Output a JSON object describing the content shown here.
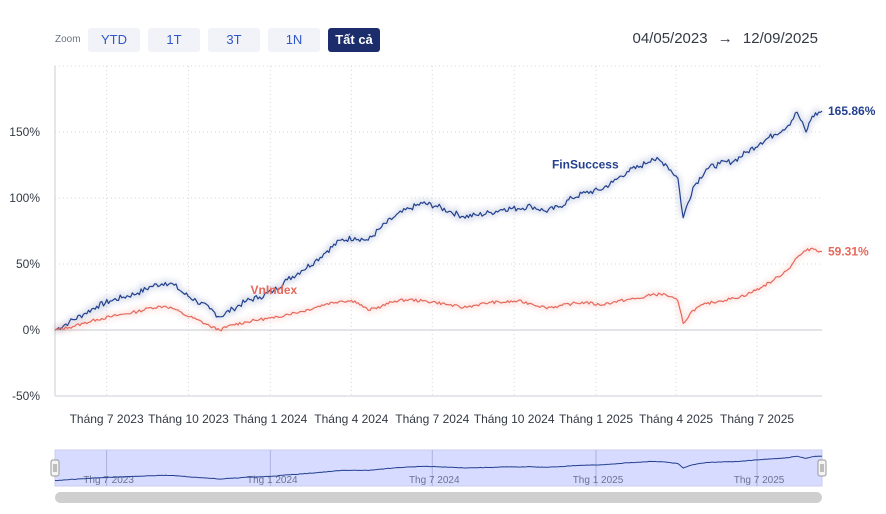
{
  "toolbar": {
    "zoom_label": "Zoom",
    "buttons": [
      "YTD",
      "1T",
      "3T",
      "1N",
      "Tất cả"
    ],
    "active_index": 4
  },
  "date_range": {
    "from": "04/05/2023",
    "arrow": "→",
    "to": "12/09/2025"
  },
  "colors": {
    "finsuccess": "#23408e",
    "vnindex": "#e5685a",
    "active_button": "#1b2d6b",
    "navigator_fill": "#c9d0ff"
  },
  "chart_data": {
    "type": "line",
    "title": "",
    "xlabel": "",
    "ylabel": "",
    "y_tick_labels": [
      "-50%",
      "0%",
      "50%",
      "100%",
      "150%"
    ],
    "y_ticks": [
      -50,
      0,
      50,
      100,
      150
    ],
    "ylim": [
      -50,
      200
    ],
    "x_range": [
      "2023-05-04",
      "2025-09-12"
    ],
    "x_tick_labels": [
      "Tháng 7 2023",
      "Tháng 10 2023",
      "Tháng 1 2024",
      "Tháng 4 2024",
      "Tháng 7 2024",
      "Tháng 10 2024",
      "Tháng 1 2025",
      "Tháng 4 2025",
      "Tháng 7 2025"
    ],
    "x_ticks": [
      "2023-07-01",
      "2023-10-01",
      "2024-01-01",
      "2024-04-01",
      "2024-07-01",
      "2024-10-01",
      "2025-01-01",
      "2025-04-01",
      "2025-07-01"
    ],
    "grid": true,
    "series": [
      {
        "name": "FinSuccess",
        "end_label": "165.86%",
        "points": [
          [
            "2023-05-04",
            0
          ],
          [
            "2023-05-20",
            6
          ],
          [
            "2023-06-05",
            12
          ],
          [
            "2023-06-20",
            18
          ],
          [
            "2023-07-05",
            22
          ],
          [
            "2023-07-20",
            25
          ],
          [
            "2023-08-05",
            28
          ],
          [
            "2023-08-20",
            33
          ],
          [
            "2023-09-05",
            36
          ],
          [
            "2023-09-15",
            34
          ],
          [
            "2023-09-25",
            28
          ],
          [
            "2023-10-10",
            22
          ],
          [
            "2023-10-25",
            16
          ],
          [
            "2023-11-05",
            10
          ],
          [
            "2023-11-20",
            16
          ],
          [
            "2023-12-05",
            22
          ],
          [
            "2023-12-20",
            25
          ],
          [
            "2024-01-05",
            30
          ],
          [
            "2024-01-20",
            38
          ],
          [
            "2024-02-05",
            45
          ],
          [
            "2024-02-20",
            52
          ],
          [
            "2024-03-05",
            60
          ],
          [
            "2024-03-20",
            68
          ],
          [
            "2024-04-05",
            70
          ],
          [
            "2024-04-20",
            68
          ],
          [
            "2024-05-05",
            78
          ],
          [
            "2024-05-20",
            86
          ],
          [
            "2024-06-05",
            92
          ],
          [
            "2024-06-20",
            96
          ],
          [
            "2024-07-05",
            94
          ],
          [
            "2024-07-20",
            90
          ],
          [
            "2024-08-05",
            86
          ],
          [
            "2024-08-20",
            87
          ],
          [
            "2024-09-05",
            89
          ],
          [
            "2024-09-20",
            92
          ],
          [
            "2024-10-05",
            92
          ],
          [
            "2024-10-20",
            94
          ],
          [
            "2024-11-05",
            90
          ],
          [
            "2024-11-20",
            93
          ],
          [
            "2024-12-05",
            100
          ],
          [
            "2024-12-20",
            104
          ],
          [
            "2025-01-05",
            106
          ],
          [
            "2025-01-20",
            112
          ],
          [
            "2025-02-05",
            120
          ],
          [
            "2025-02-20",
            124
          ],
          [
            "2025-03-05",
            130
          ],
          [
            "2025-03-20",
            126
          ],
          [
            "2025-04-03",
            115
          ],
          [
            "2025-04-09",
            85
          ],
          [
            "2025-04-20",
            108
          ],
          [
            "2025-05-05",
            122
          ],
          [
            "2025-05-20",
            126
          ],
          [
            "2025-06-05",
            128
          ],
          [
            "2025-06-20",
            135
          ],
          [
            "2025-07-05",
            142
          ],
          [
            "2025-07-20",
            148
          ],
          [
            "2025-08-05",
            155
          ],
          [
            "2025-08-15",
            165
          ],
          [
            "2025-08-25",
            150
          ],
          [
            "2025-09-01",
            162
          ],
          [
            "2025-09-12",
            165.86
          ]
        ]
      },
      {
        "name": "VnIndex",
        "end_label": "59.31%",
        "points": [
          [
            "2023-05-04",
            0
          ],
          [
            "2023-05-20",
            2
          ],
          [
            "2023-06-05",
            5
          ],
          [
            "2023-06-20",
            8
          ],
          [
            "2023-07-05",
            10
          ],
          [
            "2023-07-20",
            12
          ],
          [
            "2023-08-05",
            14
          ],
          [
            "2023-08-20",
            17
          ],
          [
            "2023-09-05",
            18
          ],
          [
            "2023-09-15",
            16
          ],
          [
            "2023-09-25",
            12
          ],
          [
            "2023-10-10",
            8
          ],
          [
            "2023-10-25",
            3
          ],
          [
            "2023-11-05",
            0
          ],
          [
            "2023-11-20",
            4
          ],
          [
            "2023-12-05",
            6
          ],
          [
            "2023-12-20",
            8
          ],
          [
            "2024-01-05",
            9
          ],
          [
            "2024-01-20",
            12
          ],
          [
            "2024-02-05",
            14
          ],
          [
            "2024-02-20",
            17
          ],
          [
            "2024-03-05",
            20
          ],
          [
            "2024-03-20",
            22
          ],
          [
            "2024-04-05",
            22
          ],
          [
            "2024-04-20",
            15
          ],
          [
            "2024-05-05",
            18
          ],
          [
            "2024-05-20",
            22
          ],
          [
            "2024-06-05",
            23
          ],
          [
            "2024-06-20",
            22
          ],
          [
            "2024-07-05",
            21
          ],
          [
            "2024-07-20",
            19
          ],
          [
            "2024-08-05",
            17
          ],
          [
            "2024-08-20",
            19
          ],
          [
            "2024-09-05",
            21
          ],
          [
            "2024-09-20",
            21
          ],
          [
            "2024-10-05",
            22
          ],
          [
            "2024-10-20",
            20
          ],
          [
            "2024-11-05",
            17
          ],
          [
            "2024-11-20",
            18
          ],
          [
            "2024-12-05",
            20
          ],
          [
            "2024-12-20",
            21
          ],
          [
            "2025-01-05",
            19
          ],
          [
            "2025-01-20",
            21
          ],
          [
            "2025-02-05",
            23
          ],
          [
            "2025-02-20",
            24
          ],
          [
            "2025-03-05",
            27
          ],
          [
            "2025-03-20",
            27
          ],
          [
            "2025-04-03",
            22
          ],
          [
            "2025-04-09",
            5
          ],
          [
            "2025-04-20",
            15
          ],
          [
            "2025-05-05",
            20
          ],
          [
            "2025-05-20",
            22
          ],
          [
            "2025-06-05",
            24
          ],
          [
            "2025-06-20",
            27
          ],
          [
            "2025-07-05",
            32
          ],
          [
            "2025-07-20",
            38
          ],
          [
            "2025-08-05",
            46
          ],
          [
            "2025-08-15",
            55
          ],
          [
            "2025-08-25",
            60
          ],
          [
            "2025-09-01",
            62
          ],
          [
            "2025-09-12",
            59.31
          ]
        ]
      }
    ],
    "annotations": [
      {
        "text": "FinSuccess",
        "series": "FinSuccess",
        "at": "2024-12-20"
      },
      {
        "text": "VnIndex",
        "series": "VnIndex",
        "at": "2024-01-05"
      }
    ],
    "navigator": {
      "tick_labels": [
        "Thg 7 2023",
        "Thg 1 2024",
        "Thg 7 2024",
        "Thg 1 2025",
        "Thg 7 2025"
      ],
      "ticks": [
        "2023-07-01",
        "2024-01-01",
        "2024-07-01",
        "2025-01-01",
        "2025-07-01"
      ]
    }
  }
}
